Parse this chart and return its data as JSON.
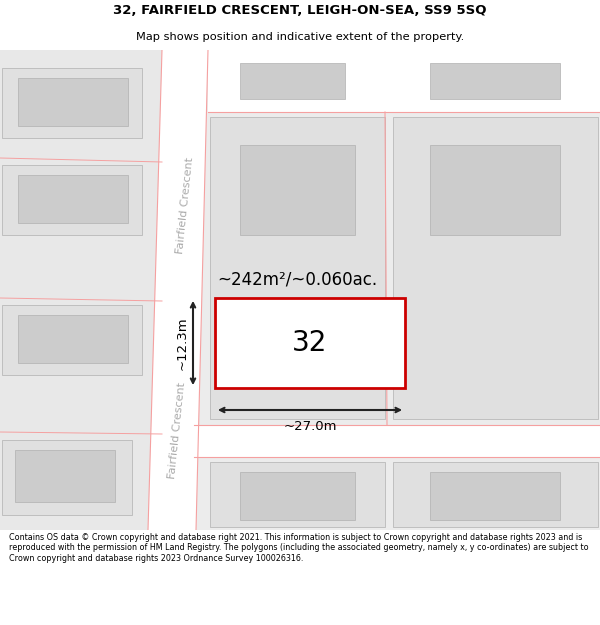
{
  "title_line1": "32, FAIRFIELD CRESCENT, LEIGH-ON-SEA, SS9 5SQ",
  "title_line2": "Map shows position and indicative extent of the property.",
  "footer_text": "Contains OS data © Crown copyright and database right 2021. This information is subject to Crown copyright and database rights 2023 and is reproduced with the permission of HM Land Registry. The polygons (including the associated geometry, namely x, y co-ordinates) are subject to Crown copyright and database rights 2023 Ordnance Survey 100026316.",
  "map_bg": "#ececec",
  "road_color": "#ffffff",
  "block_color": "#e0e0e0",
  "building_color": "#cccccc",
  "building_outline": "#b0b0b0",
  "property_fill": "#ffffff",
  "property_outline": "#cc0000",
  "road_line_color": "#f5a0a0",
  "area_text": "~242m²/~0.060ac.",
  "dim_width": "~27.0m",
  "dim_height": "~12.3m",
  "label_32": "32",
  "street_label": "Fairfield Crescent"
}
